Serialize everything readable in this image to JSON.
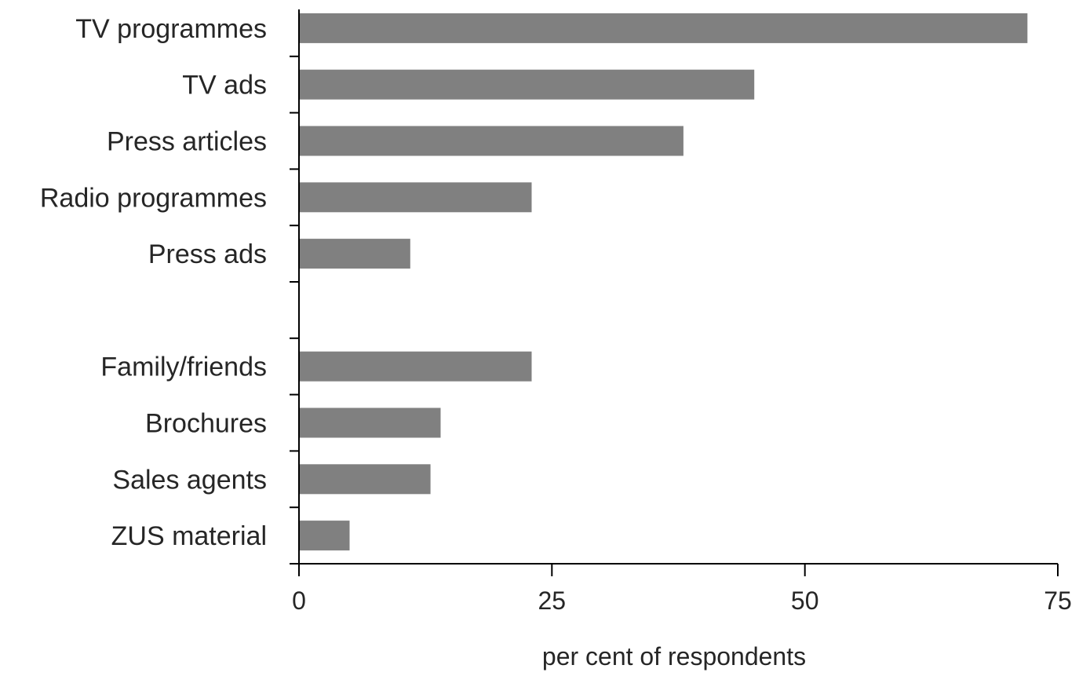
{
  "chart_data": {
    "type": "bar",
    "orientation": "horizontal",
    "title": "",
    "xlabel": "per cent of respondents",
    "ylabel": "",
    "xlim": [
      0,
      75
    ],
    "xticks": [
      0,
      25,
      50,
      75
    ],
    "xtick_labels": [
      "0",
      "25",
      "50",
      "75"
    ],
    "grid": false,
    "legend": "none",
    "bar_color": "#808080",
    "categories": [
      "TV programmes",
      "TV ads",
      "Press articles",
      "Radio programmes",
      "Press ads",
      "",
      "Family/friends",
      "Brochures",
      "Sales agents",
      "ZUS material"
    ],
    "values": [
      72,
      45,
      38,
      23,
      11,
      null,
      23,
      14,
      13,
      5
    ]
  }
}
